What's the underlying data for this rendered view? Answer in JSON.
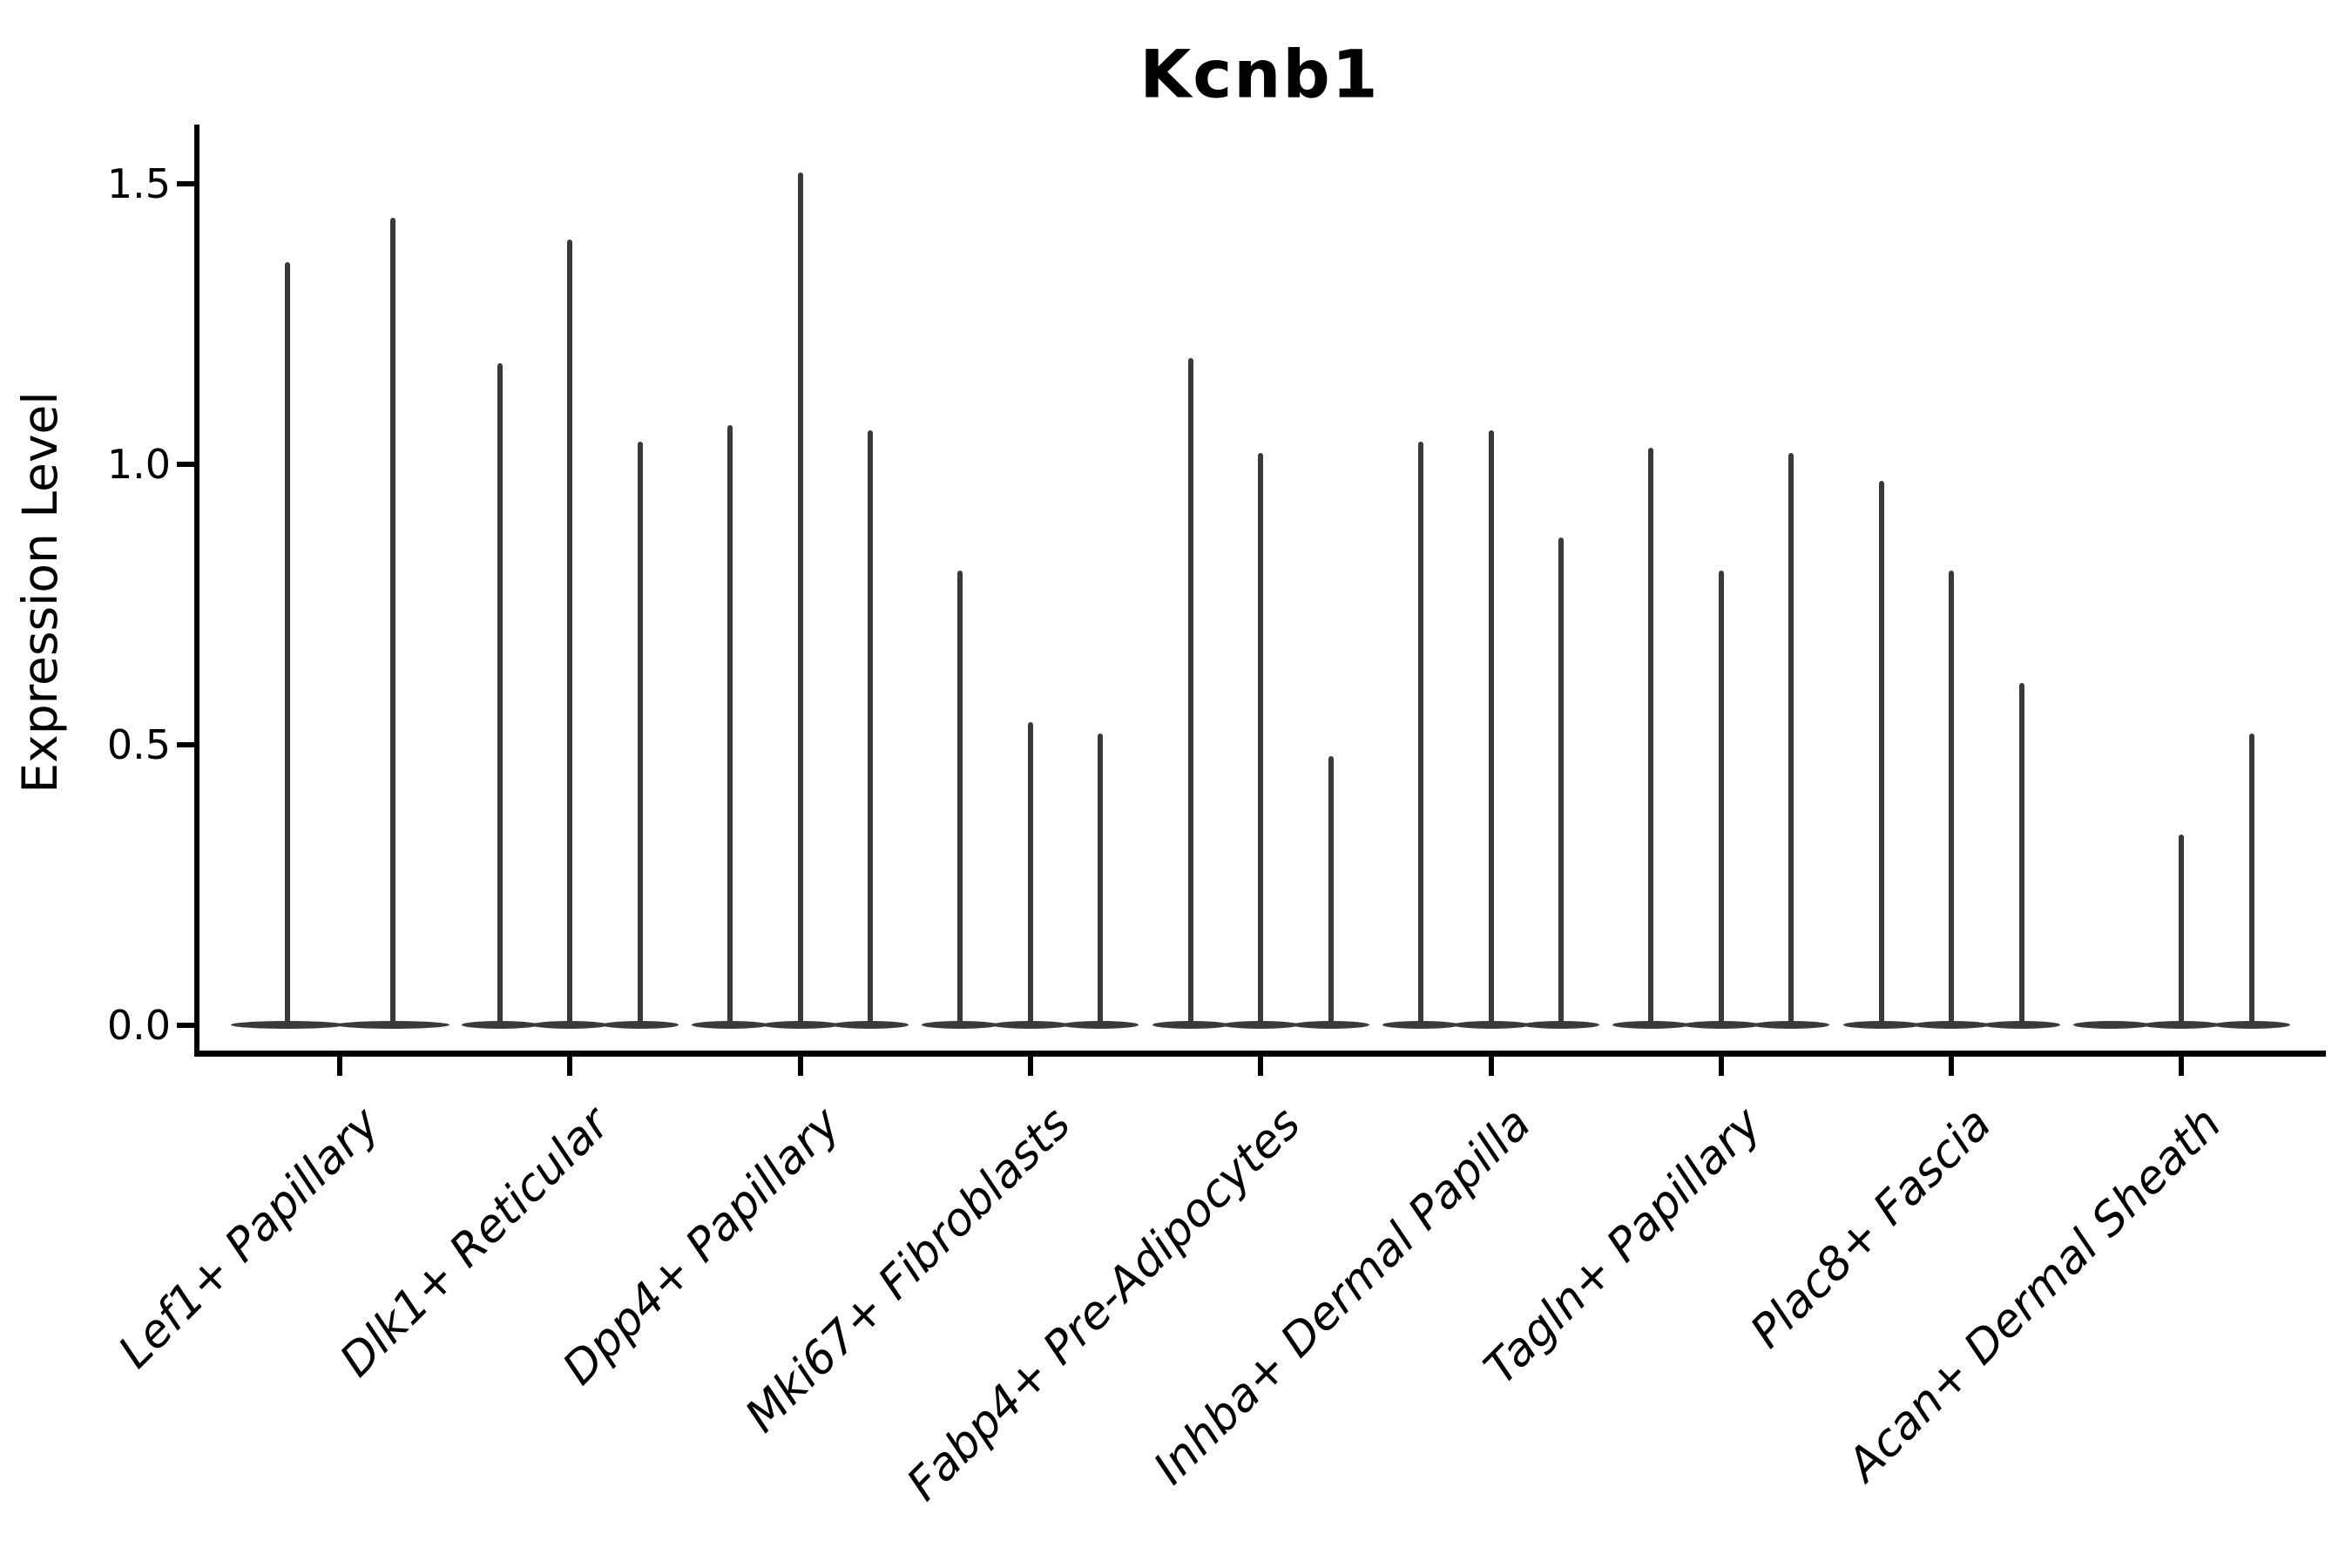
{
  "chart_data": {
    "type": "violin",
    "title": "Kcnb1",
    "xlabel": "",
    "ylabel": "Expression Level",
    "ylim": [
      0,
      1.61
    ],
    "grid": false,
    "legend": "none",
    "orientation": "vertical",
    "yticks": [
      {
        "value": 0.0,
        "label": "0.0"
      },
      {
        "value": 0.5,
        "label": "0.5"
      },
      {
        "value": 1.0,
        "label": "1.0"
      },
      {
        "value": 1.5,
        "label": "1.5"
      }
    ],
    "categories": [
      {
        "label": "Lef1+ Papillary",
        "violin_max_values": [
          1.36,
          1.44
        ]
      },
      {
        "label": "Dlk1+ Reticular",
        "violin_max_values": [
          1.18,
          1.4,
          1.04
        ]
      },
      {
        "label": "Dpp4+ Papillary",
        "violin_max_values": [
          1.07,
          1.52,
          1.06
        ]
      },
      {
        "label": "Mki67+ Fibroblasts",
        "violin_max_values": [
          0.81,
          0.54,
          0.52
        ]
      },
      {
        "label": "Fabp4+ Pre-Adipocytes",
        "violin_max_values": [
          1.19,
          1.02,
          0.48
        ]
      },
      {
        "label": "Inhba+ Dermal Papilla",
        "violin_max_values": [
          1.04,
          1.06,
          0.87
        ]
      },
      {
        "label": "Tagln+ Papillary",
        "violin_max_values": [
          1.03,
          0.81,
          1.02
        ]
      },
      {
        "label": "Plac8+ Fascia",
        "violin_max_values": [
          0.97,
          0.81,
          0.61
        ]
      },
      {
        "label": "Acan+ Dermal Sheath",
        "violin_max_values": [
          0.0,
          0.34,
          0.52
        ]
      }
    ],
    "colors": {
      "violin_stroke": "#3a3a3a",
      "axis": "#000000",
      "background": "#ffffff"
    }
  }
}
